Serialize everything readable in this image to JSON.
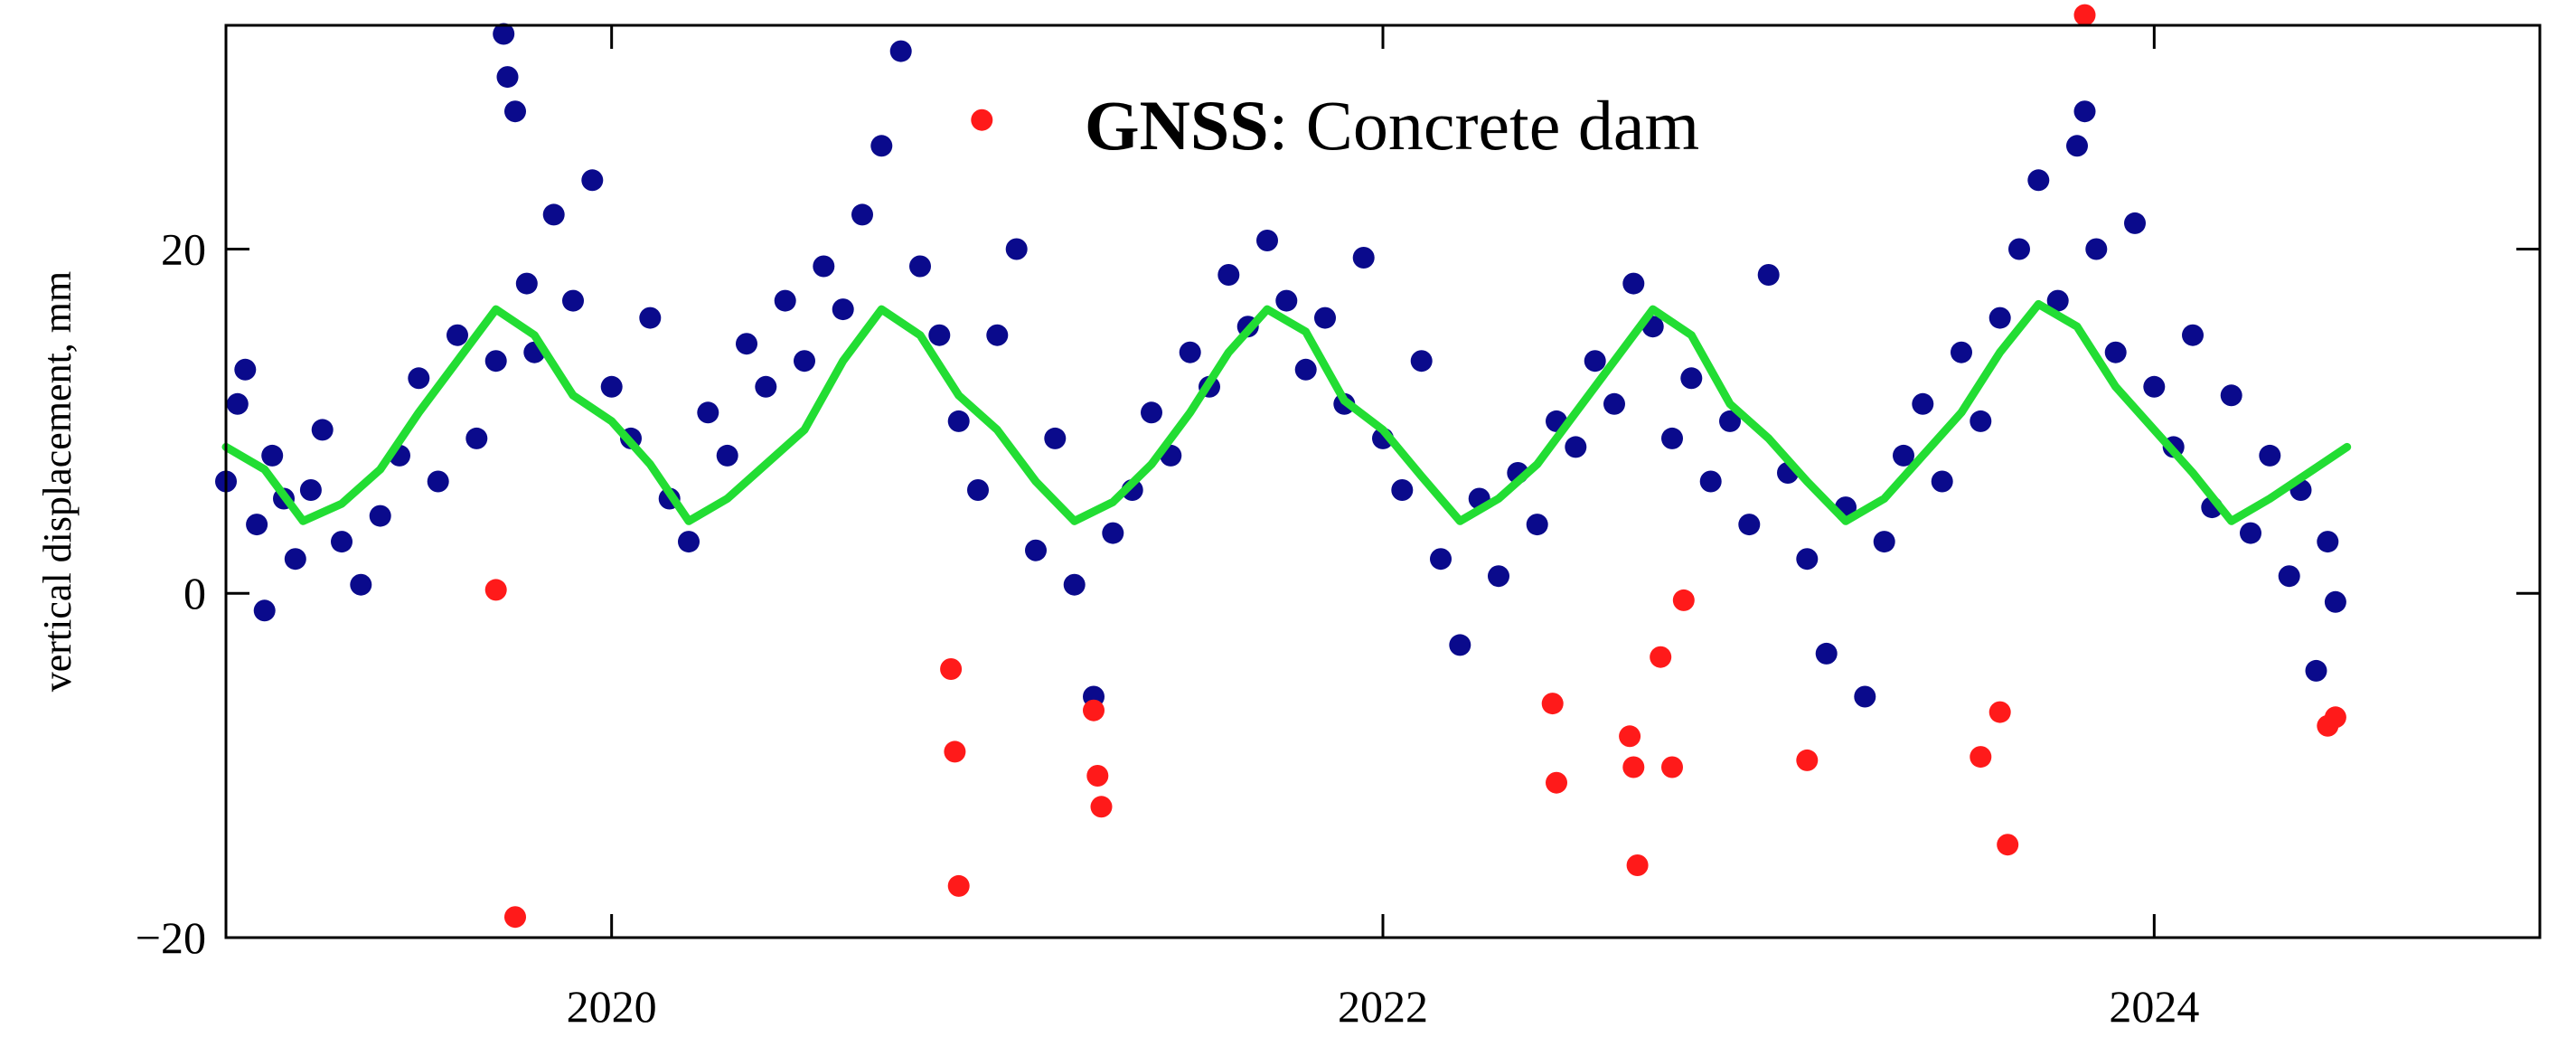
{
  "chart_data": {
    "type": "scatter",
    "title_bold": "GNSS",
    "title_rest": ": Concrete dam",
    "xlabel": "",
    "ylabel": "vertical displacement, mm",
    "xlim": [
      2019.0,
      2025.0
    ],
    "ylim": [
      -20,
      33
    ],
    "x_ticks": [
      2020,
      2022,
      2024
    ],
    "x_tick_labels": [
      "2020",
      "2022",
      "2024"
    ],
    "y_ticks": [
      -20,
      0,
      20
    ],
    "y_tick_labels": [
      "−20",
      "0",
      "20"
    ],
    "grid": false,
    "colors": {
      "observations": "#0a0a8c",
      "outliers": "#ff1a1a",
      "trend": "#22dd33",
      "frame": "#000000"
    },
    "series": [
      {
        "kind": "observations",
        "color": "#0a0a8c",
        "points": [
          [
            2019.0,
            6.5
          ],
          [
            2019.03,
            11.0
          ],
          [
            2019.05,
            13.0
          ],
          [
            2019.08,
            4.0
          ],
          [
            2019.1,
            -1.0
          ],
          [
            2019.12,
            8.0
          ],
          [
            2019.15,
            5.5
          ],
          [
            2019.18,
            2.0
          ],
          [
            2019.22,
            6.0
          ],
          [
            2019.25,
            9.5
          ],
          [
            2019.3,
            3.0
          ],
          [
            2019.35,
            0.5
          ],
          [
            2019.4,
            4.5
          ],
          [
            2019.45,
            8.0
          ],
          [
            2019.5,
            12.5
          ],
          [
            2019.55,
            6.5
          ],
          [
            2019.6,
            15.0
          ],
          [
            2019.65,
            9.0
          ],
          [
            2019.7,
            13.5
          ],
          [
            2019.72,
            32.5
          ],
          [
            2019.73,
            30.0
          ],
          [
            2019.75,
            28.0
          ],
          [
            2019.78,
            18.0
          ],
          [
            2019.8,
            14.0
          ],
          [
            2019.85,
            22.0
          ],
          [
            2019.9,
            17.0
          ],
          [
            2019.95,
            24.0
          ],
          [
            2020.0,
            12.0
          ],
          [
            2020.05,
            9.0
          ],
          [
            2020.1,
            16.0
          ],
          [
            2020.15,
            5.5
          ],
          [
            2020.2,
            3.0
          ],
          [
            2020.25,
            10.5
          ],
          [
            2020.3,
            8.0
          ],
          [
            2020.35,
            14.5
          ],
          [
            2020.4,
            12.0
          ],
          [
            2020.45,
            17.0
          ],
          [
            2020.5,
            13.5
          ],
          [
            2020.55,
            19.0
          ],
          [
            2020.6,
            16.5
          ],
          [
            2020.65,
            22.0
          ],
          [
            2020.7,
            26.0
          ],
          [
            2020.75,
            31.5
          ],
          [
            2020.8,
            19.0
          ],
          [
            2020.85,
            15.0
          ],
          [
            2020.9,
            10.0
          ],
          [
            2020.95,
            6.0
          ],
          [
            2021.0,
            15.0
          ],
          [
            2021.05,
            20.0
          ],
          [
            2021.1,
            2.5
          ],
          [
            2021.15,
            9.0
          ],
          [
            2021.2,
            0.5
          ],
          [
            2021.25,
            -6.0
          ],
          [
            2021.3,
            3.5
          ],
          [
            2021.35,
            6.0
          ],
          [
            2021.4,
            10.5
          ],
          [
            2021.45,
            8.0
          ],
          [
            2021.5,
            14.0
          ],
          [
            2021.55,
            12.0
          ],
          [
            2021.6,
            18.5
          ],
          [
            2021.65,
            15.5
          ],
          [
            2021.7,
            20.5
          ],
          [
            2021.75,
            17.0
          ],
          [
            2021.8,
            13.0
          ],
          [
            2021.85,
            16.0
          ],
          [
            2021.9,
            11.0
          ],
          [
            2021.95,
            19.5
          ],
          [
            2022.0,
            9.0
          ],
          [
            2022.05,
            6.0
          ],
          [
            2022.1,
            13.5
          ],
          [
            2022.15,
            2.0
          ],
          [
            2022.2,
            -3.0
          ],
          [
            2022.25,
            5.5
          ],
          [
            2022.3,
            1.0
          ],
          [
            2022.35,
            7.0
          ],
          [
            2022.4,
            4.0
          ],
          [
            2022.45,
            10.0
          ],
          [
            2022.5,
            8.5
          ],
          [
            2022.55,
            13.5
          ],
          [
            2022.6,
            11.0
          ],
          [
            2022.65,
            18.0
          ],
          [
            2022.7,
            15.5
          ],
          [
            2022.75,
            9.0
          ],
          [
            2022.8,
            12.5
          ],
          [
            2022.85,
            6.5
          ],
          [
            2022.9,
            10.0
          ],
          [
            2022.95,
            4.0
          ],
          [
            2023.0,
            18.5
          ],
          [
            2023.05,
            7.0
          ],
          [
            2023.1,
            2.0
          ],
          [
            2023.15,
            -3.5
          ],
          [
            2023.2,
            5.0
          ],
          [
            2023.25,
            -6.0
          ],
          [
            2023.3,
            3.0
          ],
          [
            2023.35,
            8.0
          ],
          [
            2023.4,
            11.0
          ],
          [
            2023.45,
            6.5
          ],
          [
            2023.5,
            14.0
          ],
          [
            2023.55,
            10.0
          ],
          [
            2023.6,
            16.0
          ],
          [
            2023.65,
            20.0
          ],
          [
            2023.7,
            24.0
          ],
          [
            2023.75,
            17.0
          ],
          [
            2023.8,
            26.0
          ],
          [
            2023.82,
            28.0
          ],
          [
            2023.85,
            20.0
          ],
          [
            2023.9,
            14.0
          ],
          [
            2023.95,
            21.5
          ],
          [
            2024.0,
            12.0
          ],
          [
            2024.05,
            8.5
          ],
          [
            2024.1,
            15.0
          ],
          [
            2024.15,
            5.0
          ],
          [
            2024.2,
            11.5
          ],
          [
            2024.25,
            3.5
          ],
          [
            2024.3,
            8.0
          ],
          [
            2024.35,
            1.0
          ],
          [
            2024.38,
            6.0
          ],
          [
            2024.42,
            -4.5
          ],
          [
            2024.45,
            3.0
          ],
          [
            2024.47,
            -0.5
          ]
        ]
      },
      {
        "kind": "outliers",
        "color": "#ff1a1a",
        "points": [
          [
            2019.7,
            0.2
          ],
          [
            2019.75,
            -18.8
          ],
          [
            2020.88,
            -4.4
          ],
          [
            2020.89,
            -9.2
          ],
          [
            2020.9,
            -17.0
          ],
          [
            2020.96,
            27.5
          ],
          [
            2021.25,
            -6.8
          ],
          [
            2021.26,
            -10.6
          ],
          [
            2021.27,
            -12.4
          ],
          [
            2022.44,
            -6.4
          ],
          [
            2022.45,
            -11.0
          ],
          [
            2022.64,
            -8.3
          ],
          [
            2022.65,
            -10.1
          ],
          [
            2022.66,
            -15.8
          ],
          [
            2022.72,
            -3.7
          ],
          [
            2022.75,
            -10.1
          ],
          [
            2022.78,
            -0.4
          ],
          [
            2023.1,
            -9.7
          ],
          [
            2023.55,
            -9.5
          ],
          [
            2023.6,
            -6.9
          ],
          [
            2023.62,
            -14.6
          ],
          [
            2023.82,
            33.6
          ],
          [
            2024.45,
            -7.7
          ],
          [
            2024.47,
            -7.2
          ]
        ]
      },
      {
        "kind": "trend",
        "color": "#22dd33",
        "points": [
          [
            2019.0,
            8.5
          ],
          [
            2019.1,
            7.2
          ],
          [
            2019.2,
            4.2
          ],
          [
            2019.3,
            5.2
          ],
          [
            2019.4,
            7.2
          ],
          [
            2019.5,
            10.5
          ],
          [
            2019.6,
            13.5
          ],
          [
            2019.7,
            16.5
          ],
          [
            2019.8,
            15.0
          ],
          [
            2019.9,
            11.5
          ],
          [
            2020.0,
            10.0
          ],
          [
            2020.1,
            7.5
          ],
          [
            2020.2,
            4.2
          ],
          [
            2020.3,
            5.5
          ],
          [
            2020.4,
            7.5
          ],
          [
            2020.5,
            9.5
          ],
          [
            2020.6,
            13.5
          ],
          [
            2020.7,
            16.5
          ],
          [
            2020.8,
            15.0
          ],
          [
            2020.9,
            11.5
          ],
          [
            2021.0,
            9.5
          ],
          [
            2021.1,
            6.5
          ],
          [
            2021.2,
            4.2
          ],
          [
            2021.3,
            5.3
          ],
          [
            2021.4,
            7.5
          ],
          [
            2021.5,
            10.5
          ],
          [
            2021.6,
            14.0
          ],
          [
            2021.7,
            16.5
          ],
          [
            2021.8,
            15.2
          ],
          [
            2021.9,
            11.2
          ],
          [
            2022.0,
            9.5
          ],
          [
            2022.1,
            6.8
          ],
          [
            2022.2,
            4.2
          ],
          [
            2022.3,
            5.5
          ],
          [
            2022.4,
            7.5
          ],
          [
            2022.5,
            10.5
          ],
          [
            2022.6,
            13.5
          ],
          [
            2022.7,
            16.5
          ],
          [
            2022.8,
            15.0
          ],
          [
            2022.9,
            11.0
          ],
          [
            2023.0,
            9.0
          ],
          [
            2023.1,
            6.5
          ],
          [
            2023.2,
            4.2
          ],
          [
            2023.3,
            5.5
          ],
          [
            2023.4,
            8.0
          ],
          [
            2023.5,
            10.5
          ],
          [
            2023.6,
            14.0
          ],
          [
            2023.7,
            16.8
          ],
          [
            2023.8,
            15.5
          ],
          [
            2023.9,
            12.0
          ],
          [
            2024.0,
            9.5
          ],
          [
            2024.1,
            7.0
          ],
          [
            2024.2,
            4.2
          ],
          [
            2024.3,
            5.5
          ],
          [
            2024.4,
            7.0
          ],
          [
            2024.5,
            8.5
          ]
        ]
      }
    ]
  }
}
